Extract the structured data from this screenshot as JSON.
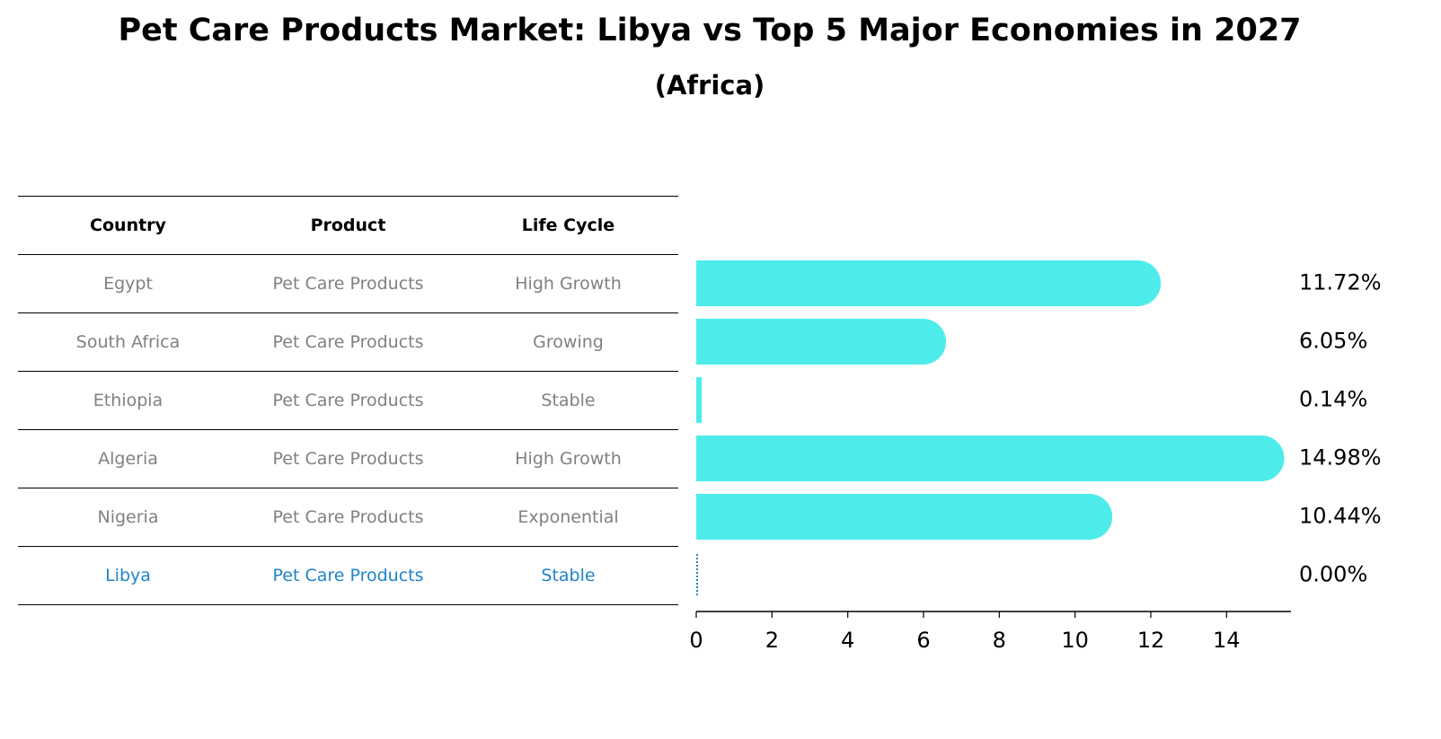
{
  "title": "Pet Care Products Market: Libya vs Top 5 Major Economies in 2027",
  "subtitle": "(Africa)",
  "table": {
    "headers": [
      "Country",
      "Product",
      "Life Cycle"
    ],
    "rows": [
      [
        "Egypt",
        "Pet Care Products",
        "High Growth"
      ],
      [
        "South Africa",
        "Pet Care Products",
        "Growing"
      ],
      [
        "Ethiopia",
        "Pet Care Products",
        "Stable"
      ],
      [
        "Algeria",
        "Pet Care Products",
        "High Growth"
      ],
      [
        "Nigeria",
        "Pet Care Products",
        "Exponential"
      ],
      [
        "Libya",
        "Pet Care Products",
        "Stable"
      ]
    ],
    "highlight_row": 5
  },
  "colors": {
    "bar": "#4deceb",
    "highlight": "#1f84c9",
    "muted_text": "#808080"
  },
  "chart_data": {
    "type": "bar",
    "orientation": "horizontal",
    "categories": [
      "Egypt",
      "South Africa",
      "Ethiopia",
      "Algeria",
      "Nigeria",
      "Libya"
    ],
    "values": [
      11.72,
      6.05,
      0.14,
      14.98,
      10.44,
      0.0
    ],
    "data_labels": [
      "11.72%",
      "6.05%",
      "0.14%",
      "14.98%",
      "10.44%",
      "0.00%"
    ],
    "xlim": [
      0,
      15.7
    ],
    "xticks": [
      0,
      2,
      4,
      6,
      8,
      10,
      12,
      14
    ],
    "grid": false,
    "legend": "none"
  }
}
